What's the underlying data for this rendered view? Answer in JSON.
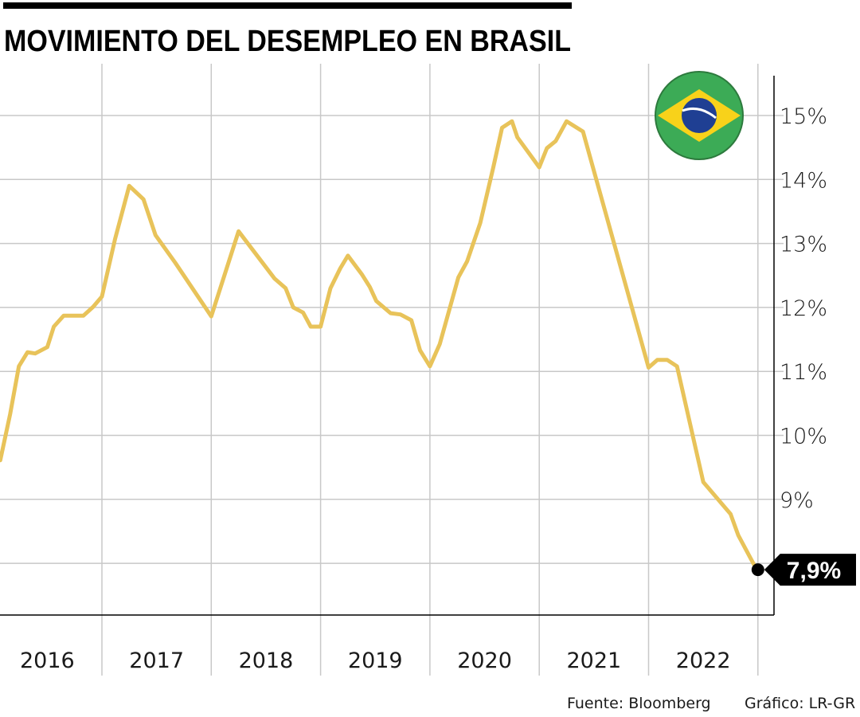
{
  "title": "MOVIMIENTO DEL DESEMPLEO EN BRASIL",
  "source": "Fuente: Bloomberg",
  "credit": "Gráfico: LR-GR",
  "colors": {
    "line": "#E8C35A",
    "grid": "#c8c8c8",
    "axis": "#000000",
    "callout_bg": "#000000"
  },
  "icons": {
    "flag": "brazil-flag-icon"
  },
  "chart_data": {
    "type": "line",
    "title": "MOVIMIENTO DEL DESEMPLEO EN BRASIL",
    "xlabel": "",
    "ylabel": "",
    "x_tick_labels": [
      "2016",
      "2017",
      "2018",
      "2019",
      "2020",
      "2021",
      "2022"
    ],
    "y_ticks": [
      9,
      10,
      11,
      12,
      13,
      14,
      15
    ],
    "y_tick_labels": [
      "9%",
      "10%",
      "11%",
      "12%",
      "13%",
      "14%",
      "15%"
    ],
    "y_gridlines": [
      8,
      9,
      10,
      11,
      12,
      13,
      14,
      15
    ],
    "xlim": [
      2016,
      2023
    ],
    "ylim": [
      7.2,
      15.6
    ],
    "grid": true,
    "y_axis_side": "right",
    "series": [
      {
        "x": [
          2016.07,
          2016.16,
          2016.24,
          2016.32,
          2016.39,
          2016.5,
          2016.56,
          2016.65,
          2016.83,
          2016.92,
          2017.0,
          2017.12,
          2017.25,
          2017.38,
          2017.49,
          2017.67,
          2018.0,
          2018.25,
          2018.58,
          2018.68,
          2018.75,
          2018.84,
          2018.91,
          2019.0,
          2019.09,
          2019.18,
          2019.25,
          2019.38,
          2019.45,
          2019.51,
          2019.64,
          2019.73,
          2019.83,
          2019.91,
          2020.0,
          2020.09,
          2020.26,
          2020.34,
          2020.46,
          2020.58,
          2020.66,
          2020.75,
          2020.8,
          2021.0,
          2021.07,
          2021.15,
          2021.25,
          2021.4,
          2022.0,
          2022.08,
          2022.17,
          2022.26,
          2022.5,
          2022.75,
          2022.82,
          2022.97,
          2023.0
        ],
        "y": [
          9.61,
          10.33,
          11.08,
          11.3,
          11.28,
          11.38,
          11.7,
          11.87,
          11.87,
          12.01,
          12.17,
          13.07,
          13.9,
          13.69,
          13.13,
          12.7,
          11.86,
          13.19,
          12.45,
          12.3,
          12.0,
          11.92,
          11.7,
          11.7,
          12.3,
          12.61,
          12.81,
          12.51,
          12.32,
          12.1,
          11.91,
          11.89,
          11.8,
          11.33,
          11.08,
          11.43,
          12.47,
          12.72,
          13.32,
          14.19,
          14.81,
          14.91,
          14.66,
          14.19,
          14.49,
          14.6,
          14.91,
          14.75,
          11.06,
          11.18,
          11.18,
          11.08,
          9.27,
          8.77,
          8.44,
          7.96,
          7.9
        ]
      }
    ],
    "annotations": [
      {
        "text": "7,9%",
        "x": 2023.0,
        "y": 7.9
      }
    ]
  }
}
